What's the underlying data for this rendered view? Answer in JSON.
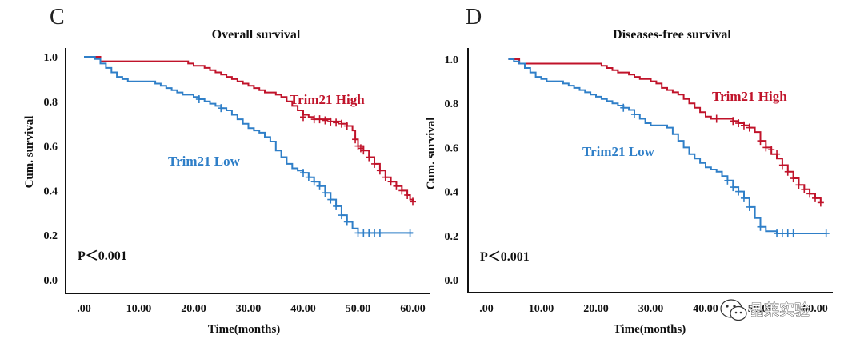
{
  "watermark": {
    "text": "晶莱实验",
    "icon": "wechat-icon"
  },
  "colors": {
    "high": "#c0132a",
    "low": "#2f7fc8"
  },
  "chart_data": [
    {
      "type": "line",
      "panel": "C",
      "title": "Overall survival",
      "xlabel": "Time(months)",
      "ylabel": "Cum. survival",
      "xlim": [
        0,
        60
      ],
      "ylim": [
        0,
        1
      ],
      "x_ticks": [
        ".00",
        "10.00",
        "20.00",
        "30.00",
        "40.00",
        "50.00",
        "60.00"
      ],
      "y_ticks": [
        "0.0",
        "0.2",
        "0.4",
        "0.6",
        "0.8",
        "1.0"
      ],
      "p_value": "P＜0.001",
      "series": [
        {
          "name": "Trim21 High",
          "color": "#c0132a",
          "steps": [
            [
              0,
              1.0
            ],
            [
              3,
              0.98
            ],
            [
              17,
              0.98
            ],
            [
              19,
              0.97
            ],
            [
              20,
              0.96
            ],
            [
              22,
              0.95
            ],
            [
              23,
              0.94
            ],
            [
              24,
              0.93
            ],
            [
              25,
              0.92
            ],
            [
              26,
              0.91
            ],
            [
              27,
              0.9
            ],
            [
              28,
              0.89
            ],
            [
              29,
              0.88
            ],
            [
              30,
              0.87
            ],
            [
              31,
              0.86
            ],
            [
              32,
              0.85
            ],
            [
              33,
              0.84
            ],
            [
              35,
              0.83
            ],
            [
              36,
              0.82
            ],
            [
              37,
              0.8
            ],
            [
              38,
              0.78
            ],
            [
              39,
              0.76
            ],
            [
              40,
              0.74
            ],
            [
              41,
              0.73
            ],
            [
              42,
              0.72
            ],
            [
              45,
              0.71
            ],
            [
              47,
              0.7
            ],
            [
              48,
              0.69
            ],
            [
              49,
              0.67
            ],
            [
              49.5,
              0.63
            ],
            [
              50,
              0.6
            ],
            [
              51,
              0.58
            ],
            [
              52,
              0.55
            ],
            [
              53,
              0.52
            ],
            [
              54,
              0.49
            ],
            [
              55,
              0.46
            ],
            [
              56,
              0.44
            ],
            [
              57,
              0.42
            ],
            [
              58,
              0.4
            ],
            [
              59,
              0.38
            ],
            [
              59.5,
              0.36
            ],
            [
              60,
              0.35
            ]
          ],
          "censors": [
            [
              40,
              0.73
            ],
            [
              42,
              0.72
            ],
            [
              43,
              0.72
            ],
            [
              44,
              0.715
            ],
            [
              45,
              0.71
            ],
            [
              46,
              0.705
            ],
            [
              47,
              0.7
            ],
            [
              48,
              0.69
            ],
            [
              49.5,
              0.63
            ],
            [
              50,
              0.6
            ],
            [
              50.5,
              0.59
            ],
            [
              51,
              0.58
            ],
            [
              52,
              0.55
            ],
            [
              53,
              0.52
            ],
            [
              54,
              0.49
            ],
            [
              55,
              0.46
            ],
            [
              56,
              0.44
            ],
            [
              57,
              0.42
            ],
            [
              58,
              0.4
            ],
            [
              59,
              0.38
            ],
            [
              60,
              0.35
            ]
          ]
        },
        {
          "name": "Trim21 Low",
          "color": "#2f7fc8",
          "steps": [
            [
              0,
              1.0
            ],
            [
              2,
              0.99
            ],
            [
              3,
              0.97
            ],
            [
              4,
              0.95
            ],
            [
              5,
              0.93
            ],
            [
              6,
              0.91
            ],
            [
              7,
              0.9
            ],
            [
              8,
              0.89
            ],
            [
              13,
              0.88
            ],
            [
              14,
              0.87
            ],
            [
              15,
              0.86
            ],
            [
              16,
              0.85
            ],
            [
              17,
              0.84
            ],
            [
              18,
              0.83
            ],
            [
              20,
              0.82
            ],
            [
              21,
              0.81
            ],
            [
              22,
              0.8
            ],
            [
              23,
              0.79
            ],
            [
              24,
              0.78
            ],
            [
              25,
              0.77
            ],
            [
              26,
              0.76
            ],
            [
              27,
              0.74
            ],
            [
              28,
              0.72
            ],
            [
              29,
              0.7
            ],
            [
              30,
              0.68
            ],
            [
              31,
              0.67
            ],
            [
              32,
              0.66
            ],
            [
              33,
              0.64
            ],
            [
              34,
              0.62
            ],
            [
              35,
              0.58
            ],
            [
              36,
              0.55
            ],
            [
              37,
              0.52
            ],
            [
              38,
              0.5
            ],
            [
              39,
              0.49
            ],
            [
              40,
              0.48
            ],
            [
              41,
              0.46
            ],
            [
              42,
              0.44
            ],
            [
              43,
              0.42
            ],
            [
              44,
              0.39
            ],
            [
              45,
              0.36
            ],
            [
              46,
              0.33
            ],
            [
              47,
              0.29
            ],
            [
              48,
              0.26
            ],
            [
              49,
              0.23
            ],
            [
              50,
              0.21
            ],
            [
              60,
              0.21
            ]
          ],
          "censors": [
            [
              21,
              0.81
            ],
            [
              25,
              0.77
            ],
            [
              40,
              0.48
            ],
            [
              41,
              0.46
            ],
            [
              42,
              0.44
            ],
            [
              43,
              0.42
            ],
            [
              44,
              0.39
            ],
            [
              45,
              0.36
            ],
            [
              46,
              0.33
            ],
            [
              47,
              0.29
            ],
            [
              48,
              0.26
            ],
            [
              50,
              0.21
            ],
            [
              51,
              0.21
            ],
            [
              52,
              0.21
            ],
            [
              53,
              0.21
            ],
            [
              54,
              0.21
            ],
            [
              59.5,
              0.21
            ]
          ]
        }
      ],
      "annotations": [
        "Trim21 High",
        "Trim21 Low"
      ]
    },
    {
      "type": "line",
      "panel": "D",
      "title": "Diseases-free survival",
      "xlabel": "Time(months)",
      "ylabel": "Cum. survival",
      "xlim": [
        0,
        60
      ],
      "ylim": [
        0,
        1
      ],
      "x_ticks": [
        ".00",
        "10.00",
        "20.00",
        "30.00",
        "40.00",
        "50.00",
        "60.00"
      ],
      "y_ticks": [
        "0.0",
        "0.2",
        "0.4",
        "0.6",
        "0.8",
        "1.0"
      ],
      "p_value": "P＜0.001",
      "series": [
        {
          "name": "Trim21 High",
          "color": "#c0132a",
          "steps": [
            [
              4,
              1.0
            ],
            [
              6,
              0.98
            ],
            [
              20,
              0.98
            ],
            [
              21,
              0.97
            ],
            [
              22,
              0.96
            ],
            [
              23,
              0.95
            ],
            [
              24,
              0.94
            ],
            [
              26,
              0.93
            ],
            [
              27,
              0.92
            ],
            [
              28,
              0.91
            ],
            [
              30,
              0.9
            ],
            [
              31,
              0.89
            ],
            [
              32,
              0.87
            ],
            [
              33,
              0.86
            ],
            [
              34,
              0.85
            ],
            [
              35,
              0.84
            ],
            [
              36,
              0.82
            ],
            [
              37,
              0.8
            ],
            [
              38,
              0.78
            ],
            [
              39,
              0.76
            ],
            [
              40,
              0.74
            ],
            [
              41,
              0.73
            ],
            [
              45,
              0.72
            ],
            [
              46,
              0.71
            ],
            [
              47,
              0.7
            ],
            [
              48,
              0.69
            ],
            [
              49,
              0.67
            ],
            [
              50,
              0.63
            ],
            [
              51,
              0.6
            ],
            [
              52,
              0.57
            ],
            [
              53,
              0.55
            ],
            [
              54,
              0.52
            ],
            [
              55,
              0.49
            ],
            [
              56,
              0.46
            ],
            [
              57,
              0.43
            ],
            [
              58,
              0.41
            ],
            [
              59,
              0.39
            ],
            [
              60,
              0.37
            ],
            [
              61,
              0.35
            ]
          ],
          "censors": [
            [
              42,
              0.73
            ],
            [
              45,
              0.72
            ],
            [
              46,
              0.71
            ],
            [
              47,
              0.7
            ],
            [
              48,
              0.69
            ],
            [
              50,
              0.63
            ],
            [
              51,
              0.6
            ],
            [
              52,
              0.59
            ],
            [
              53,
              0.57
            ],
            [
              54,
              0.52
            ],
            [
              55,
              0.49
            ],
            [
              56,
              0.46
            ],
            [
              57,
              0.43
            ],
            [
              58,
              0.41
            ],
            [
              59,
              0.39
            ],
            [
              60,
              0.37
            ],
            [
              61,
              0.35
            ]
          ]
        },
        {
          "name": "Trim21 Low",
          "color": "#2f7fc8",
          "steps": [
            [
              4,
              1.0
            ],
            [
              5,
              0.99
            ],
            [
              6,
              0.98
            ],
            [
              7,
              0.96
            ],
            [
              8,
              0.94
            ],
            [
              9,
              0.92
            ],
            [
              10,
              0.91
            ],
            [
              11,
              0.9
            ],
            [
              14,
              0.89
            ],
            [
              15,
              0.88
            ],
            [
              16,
              0.87
            ],
            [
              17,
              0.86
            ],
            [
              18,
              0.85
            ],
            [
              19,
              0.84
            ],
            [
              20,
              0.83
            ],
            [
              21,
              0.82
            ],
            [
              22,
              0.81
            ],
            [
              23,
              0.8
            ],
            [
              24,
              0.79
            ],
            [
              25,
              0.78
            ],
            [
              26,
              0.77
            ],
            [
              27,
              0.75
            ],
            [
              28,
              0.73
            ],
            [
              29,
              0.71
            ],
            [
              30,
              0.7
            ],
            [
              33,
              0.69
            ],
            [
              34,
              0.66
            ],
            [
              35,
              0.63
            ],
            [
              36,
              0.6
            ],
            [
              37,
              0.57
            ],
            [
              38,
              0.55
            ],
            [
              39,
              0.53
            ],
            [
              40,
              0.51
            ],
            [
              41,
              0.5
            ],
            [
              42,
              0.49
            ],
            [
              43,
              0.47
            ],
            [
              44,
              0.45
            ],
            [
              45,
              0.42
            ],
            [
              46,
              0.4
            ],
            [
              47,
              0.37
            ],
            [
              48,
              0.33
            ],
            [
              49,
              0.28
            ],
            [
              50,
              0.24
            ],
            [
              51,
              0.22
            ],
            [
              53,
              0.21
            ],
            [
              62,
              0.21
            ]
          ],
          "censors": [
            [
              25,
              0.78
            ],
            [
              27,
              0.75
            ],
            [
              44,
              0.45
            ],
            [
              45,
              0.42
            ],
            [
              46,
              0.4
            ],
            [
              47,
              0.37
            ],
            [
              48,
              0.33
            ],
            [
              50,
              0.24
            ],
            [
              53,
              0.21
            ],
            [
              54,
              0.21
            ],
            [
              55,
              0.21
            ],
            [
              56,
              0.21
            ],
            [
              62,
              0.21
            ]
          ]
        }
      ],
      "annotations": [
        "Trim21 High",
        "Trim21 Low"
      ]
    }
  ]
}
